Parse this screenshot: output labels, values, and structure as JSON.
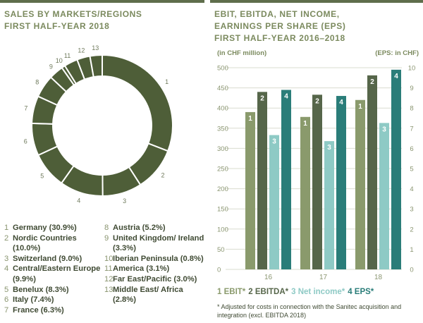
{
  "left_panel": {
    "title_lines": [
      "SALES BY MARKETS/REGIONS",
      "FIRST HALF-YEAR 2018"
    ],
    "legend": [
      {
        "num": "1",
        "label": "Germany (30.9%)"
      },
      {
        "num": "2",
        "label": "Nordic Countries (10.0%)"
      },
      {
        "num": "3",
        "label": "Switzerland (9.0%)"
      },
      {
        "num": "4",
        "label": "Central/Eastern Europe (9.9%)"
      },
      {
        "num": "5",
        "label": "Benelux (8.3%)"
      },
      {
        "num": "6",
        "label": "Italy (7.4%)"
      },
      {
        "num": "7",
        "label": "France (6.3%)"
      },
      {
        "num": "8",
        "label": "Austria (5.2%)"
      },
      {
        "num": "9",
        "label": "United Kingdom/ Ireland (3.3%)"
      },
      {
        "num": "10",
        "label": "Iberian Peninsula (0.8%)"
      },
      {
        "num": "11",
        "label": "America (3.1%)"
      },
      {
        "num": "12",
        "label": "Far East/Pacific (3.0%)"
      },
      {
        "num": "13",
        "label": "Middle East/ Africa (2.8%)"
      }
    ]
  },
  "right_panel": {
    "title_lines": [
      "EBIT, EBITDA, NET INCOME,",
      "EARNINGS PER SHARE (EPS)",
      "FIRST HALF-YEAR 2016–2018"
    ],
    "left_unit": "(in CHF million)",
    "right_unit": "(EPS: in CHF)",
    "footnote": "* Adjusted for costs in connection with the Sanitec acquisition and integration (excl. EBITDA 2018)"
  },
  "chart_data": [
    {
      "type": "pie",
      "title": "SALES BY MARKETS/REGIONS FIRST HALF-YEAR 2018",
      "labels": [
        "1",
        "2",
        "3",
        "4",
        "5",
        "6",
        "7",
        "8",
        "9",
        "10",
        "11",
        "12",
        "13"
      ],
      "categories": [
        "Germany",
        "Nordic Countries",
        "Switzerland",
        "Central/Eastern Europe",
        "Benelux",
        "Italy",
        "France",
        "Austria",
        "United Kingdom/ Ireland",
        "Iberian Peninsula",
        "America",
        "Far East/Pacific",
        "Middle East/ Africa"
      ],
      "values": [
        30.9,
        10.0,
        9.0,
        9.9,
        8.3,
        7.4,
        6.3,
        5.2,
        3.3,
        0.8,
        3.1,
        3.0,
        2.8
      ],
      "donut": true,
      "color": "#4e5e38"
    },
    {
      "type": "bar",
      "title": "EBIT, EBITDA, NET INCOME, EARNINGS PER SHARE (EPS) FIRST HALF-YEAR 2016–2018",
      "categories": [
        "16",
        "17",
        "18"
      ],
      "ylim": [
        0,
        500
      ],
      "ylim_right": [
        0,
        10
      ],
      "yticks": [
        0,
        50,
        100,
        150,
        200,
        250,
        300,
        350,
        400,
        450,
        500
      ],
      "yticks_right": [
        0,
        1,
        2,
        3,
        4,
        5,
        6,
        7,
        8,
        9,
        10
      ],
      "grid": true,
      "series": [
        {
          "name": "1 EBIT*",
          "num": "1",
          "color": "#8a9a6c",
          "values": [
            390,
            378,
            420
          ],
          "axis": "left"
        },
        {
          "name": "2 EBITDA*",
          "num": "2",
          "color": "#56664a",
          "values": [
            440,
            433,
            481
          ],
          "axis": "left"
        },
        {
          "name": "3 Net income*",
          "num": "3",
          "color": "#8ecac5",
          "values": [
            333,
            318,
            363
          ],
          "axis": "left"
        },
        {
          "name": "4 EPS*",
          "num": "4",
          "color": "#2a7d79",
          "values": [
            8.9,
            8.6,
            9.9
          ],
          "axis": "right"
        }
      ]
    }
  ]
}
